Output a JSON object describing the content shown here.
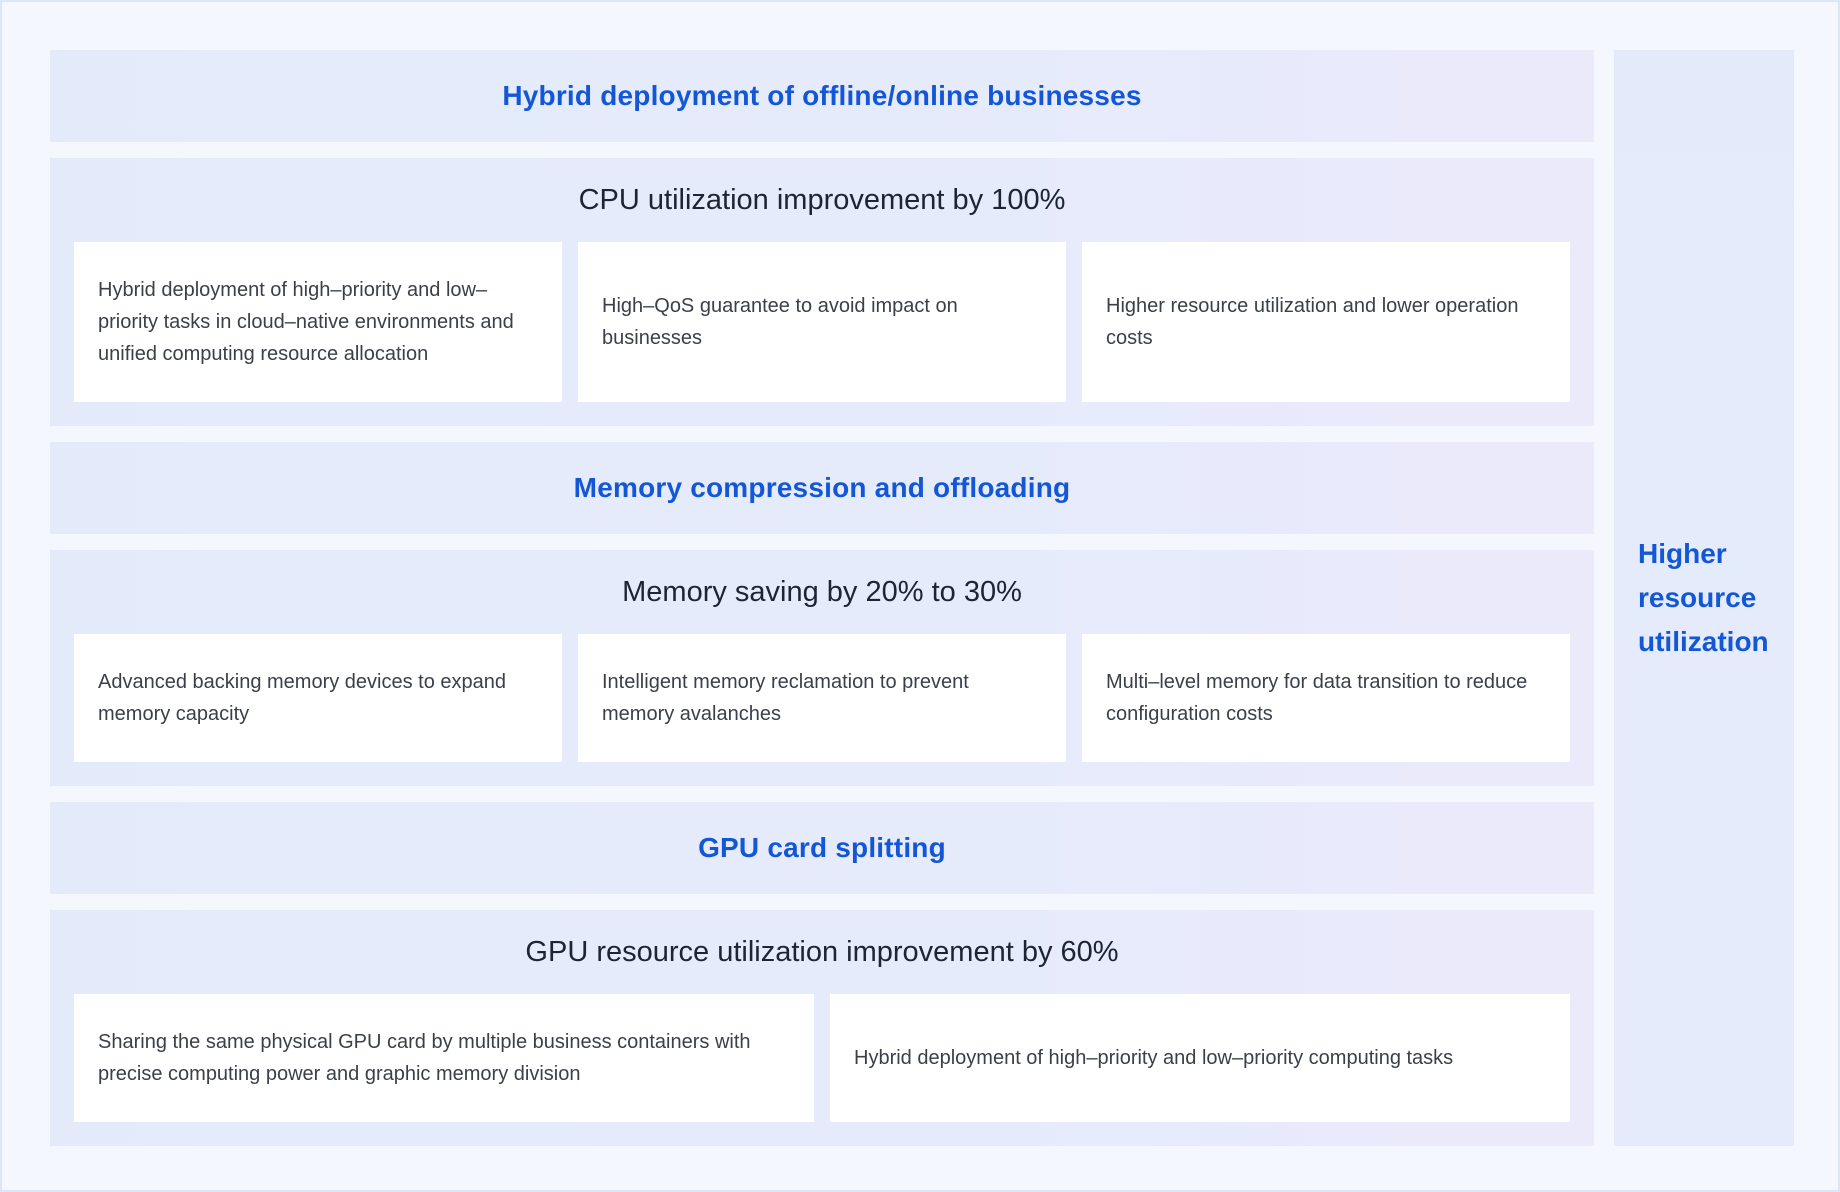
{
  "sections": [
    {
      "title": "Hybrid deployment of offline/online businesses",
      "heading": "CPU utilization improvement by 100%",
      "cards": [
        "Hybrid deployment of high–priority and low–priority tasks in cloud–native environments and unified computing resource allocation",
        "High–QoS guarantee to avoid impact on businesses",
        "Higher resource utilization and lower operation costs"
      ]
    },
    {
      "title": "Memory compression and offloading",
      "heading": "Memory saving by 20% to 30%",
      "cards": [
        "Advanced backing memory devices to expand memory capacity",
        "Intelligent memory reclamation to prevent memory avalanches",
        "Multi–level memory for data transition to reduce configuration costs"
      ]
    },
    {
      "title": "GPU card splitting",
      "heading": "GPU resource utilization improvement by 60%",
      "cards": [
        "Sharing the same physical GPU card by multiple business containers with precise computing power and graphic memory division",
        "Hybrid deployment of high–priority and low–priority computing tasks"
      ]
    }
  ],
  "side_label": "Higher resource utilization",
  "colors": {
    "accent": "#1457d6",
    "band": "#e4ebfb",
    "card": "#ffffff",
    "text": "#3a3f4a",
    "heading": "#1d2433"
  }
}
